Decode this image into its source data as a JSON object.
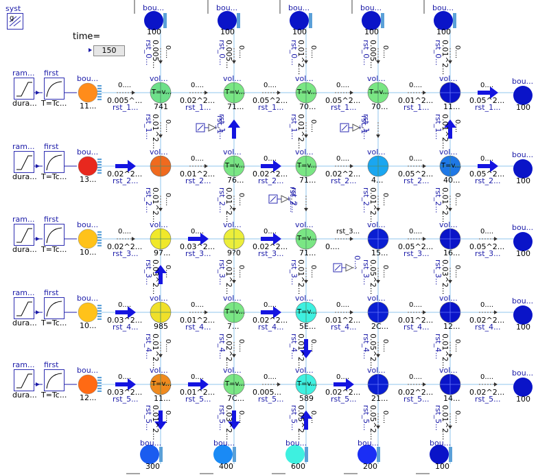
{
  "system": {
    "label": "syst",
    "sublabel": "g"
  },
  "time": {
    "label": "time=",
    "value": "150"
  },
  "source_rows": [
    {
      "ramp": "ram...",
      "ramp_sub": "dura...",
      "first": "first",
      "first_sub": "T=Tc..."
    },
    {
      "ramp": "ram...",
      "ramp_sub": "dura...",
      "first": "first",
      "first_sub": "T=Tc..."
    },
    {
      "ramp": "ram...",
      "ramp_sub": "dura...",
      "first": "first",
      "first_sub": "T=Tc..."
    },
    {
      "ramp": "ram...",
      "ramp_sub": "dura...",
      "first": "first",
      "first_sub": "T=Tc..."
    },
    {
      "ramp": "ram...",
      "ramp_sub": "dura...",
      "first": "first",
      "first_sub": "T=Tc..."
    }
  ],
  "left_boundaries": [
    {
      "label": "bou...",
      "value": "11...",
      "color": "#ff8c1a"
    },
    {
      "label": "bou...",
      "value": "13...",
      "color": "#e8281e"
    },
    {
      "label": "bou...",
      "value": "10...",
      "color": "#ffc21a"
    },
    {
      "label": "bou...",
      "value": "10...",
      "color": "#ffc21a"
    },
    {
      "label": "bou...",
      "value": "12...",
      "color": "#ff6a14"
    }
  ],
  "top_boundaries": [
    {
      "label": "bou...",
      "value": "100"
    },
    {
      "label": "bou...",
      "value": "100"
    },
    {
      "label": "bou...",
      "value": "100"
    },
    {
      "label": "bou...",
      "value": "100"
    },
    {
      "label": "bou...",
      "value": "100"
    }
  ],
  "right_boundaries": [
    {
      "label": "bou...",
      "value": "100"
    },
    {
      "label": "bou...",
      "value": "100"
    },
    {
      "label": "bou...",
      "value": "100"
    },
    {
      "label": "bou...",
      "value": "100"
    },
    {
      "label": "bou...",
      "value": "100"
    }
  ],
  "bottom_boundaries": [
    {
      "label": "bou...",
      "value": "300",
      "color": "#1a5cf0"
    },
    {
      "label": "bou...",
      "value": "400",
      "color": "#1a8af5"
    },
    {
      "label": "bou...",
      "value": "600",
      "color": "#3ef0e0"
    },
    {
      "label": "bou...",
      "value": "200",
      "color": "#1a2ef5"
    },
    {
      "label": "bou...",
      "value": "100",
      "color": "#0a14c8"
    }
  ],
  "volumes": [
    [
      {
        "label": "vol...",
        "value": "741",
        "color": "#6ee08a",
        "text": "T=v..."
      },
      {
        "label": "vol...",
        "value": "71...",
        "color": "#7ae684",
        "text": "T=v..."
      },
      {
        "label": "vol...",
        "value": "70...",
        "color": "#7ae684",
        "text": "T=v..."
      },
      {
        "label": "vol...",
        "value": "70...",
        "color": "#7ae684",
        "text": "T=v..."
      },
      {
        "label": "vol...",
        "value": "11...",
        "color": "#0a14c8",
        "text": ""
      }
    ],
    [
      {
        "label": "vol...",
        "value": "",
        "color": "#f06a1e",
        "text": ""
      },
      {
        "label": "vol...",
        "value": "76...",
        "color": "#7ae684",
        "text": "T=v..."
      },
      {
        "label": "vol...",
        "value": "71...",
        "color": "#7ae684",
        "text": "T=v..."
      },
      {
        "label": "vol...",
        "value": "4...",
        "color": "#1aa6f0",
        "text": ""
      },
      {
        "label": "vol...",
        "value": "40...",
        "color": "#1e78e6",
        "text": "T=v..."
      }
    ],
    [
      {
        "label": "vol...",
        "value": "97...",
        "color": "#f0e82a",
        "text": ""
      },
      {
        "label": "vol...",
        "value": "9?0",
        "color": "#ecee3a",
        "text": ""
      },
      {
        "label": "vol...",
        "value": "71...",
        "color": "#7ae684",
        "text": "T=v..."
      },
      {
        "label": "vol...",
        "value": "15...",
        "color": "#0a1ed2",
        "text": ""
      },
      {
        "label": "vol...",
        "value": "16...",
        "color": "#0a14c8",
        "text": ""
      }
    ],
    [
      {
        "label": "vol...",
        "value": "985",
        "color": "#f0e02a",
        "text": ""
      },
      {
        "label": "vol...",
        "value": "7...",
        "color": "#7ae684",
        "text": "T=v..."
      },
      {
        "label": "vol...",
        "value": "5E...",
        "color": "#3ef0e0",
        "text": "T=v..."
      },
      {
        "label": "vol...",
        "value": "2C...",
        "color": "#0a1ed2",
        "text": ""
      },
      {
        "label": "vol...",
        "value": "12...",
        "color": "#0a14c8",
        "text": ""
      }
    ],
    [
      {
        "label": "vol...",
        "value": "11...",
        "color": "#f08a1e",
        "text": "T=v..."
      },
      {
        "label": "vol...",
        "value": "7C...",
        "color": "#7ae684",
        "text": "T=v..."
      },
      {
        "label": "vol...",
        "value": "589",
        "color": "#3ef0e0",
        "text": "T=v..."
      },
      {
        "label": "vol...",
        "value": "21...",
        "color": "#0a1ed2",
        "text": ""
      },
      {
        "label": "vol...",
        "value": "14...",
        "color": "#0a14c8",
        "text": ""
      }
    ]
  ],
  "h_resistors": [
    [
      {
        "top": "0....",
        "bottom": "0.005^...",
        "name": "rst_1..."
      },
      {
        "top": "0....",
        "bottom": "0.02^2...",
        "name": "rst_1..."
      },
      {
        "top": "0....",
        "bottom": "0.05^2...",
        "name": "rst_1..."
      },
      {
        "top": "0....",
        "bottom": "0.05^2...",
        "name": "rst_1..."
      },
      {
        "top": "0....",
        "bottom": "0.01^2...",
        "name": "rst_1..."
      },
      {
        "top": "0....",
        "bottom": "0.05^2...",
        "name": "rst_1..."
      }
    ],
    [
      {
        "top": "",
        "bottom": "0.02^2...",
        "name": "rst_2..."
      },
      {
        "top": "0....",
        "bottom": "0.01^2...",
        "name": "rst_2..."
      },
      {
        "top": "0....",
        "bottom": "0.02^2...",
        "name": "rst_2..."
      },
      {
        "top": "0....",
        "bottom": "0.02^2...",
        "name": "rst_2..."
      },
      {
        "top": "0....",
        "bottom": "0.05^2...",
        "name": "rst_2..."
      },
      {
        "top": "0....",
        "bottom": "0.05^2...",
        "name": "rst_2..."
      }
    ],
    [
      {
        "top": "0....",
        "bottom": "0.02^2...",
        "name": "rst_3..."
      },
      {
        "top": "0....",
        "bottom": "0.03^2...",
        "name": "rst_3..."
      },
      {
        "top": "0....",
        "bottom": "0.02^2...",
        "name": "rst_3..."
      },
      {
        "top": "rst_3...",
        "bottom": "0....",
        "name": ""
      },
      {
        "top": "0....",
        "bottom": "0.05^2...",
        "name": "rst_3..."
      },
      {
        "top": "0....",
        "bottom": "0.05^2...",
        "name": "rst_3..."
      }
    ],
    [
      {
        "top": "0....",
        "bottom": "0.03^2...",
        "name": "rst_4..."
      },
      {
        "top": "0....",
        "bottom": "0.01^2...",
        "name": "rst_4..."
      },
      {
        "top": "0....",
        "bottom": "0.02^2...",
        "name": "rst_4..."
      },
      {
        "top": "0....",
        "bottom": "0.01^2...",
        "name": "rst_4..."
      },
      {
        "top": "0....",
        "bottom": "0.01^2...",
        "name": "rst_4..."
      },
      {
        "top": "0....",
        "bottom": "0.02^2...",
        "name": "rst_4..."
      }
    ],
    [
      {
        "top": "0....",
        "bottom": "0.03^2...",
        "name": "rst_5..."
      },
      {
        "top": "0....",
        "bottom": "0.01^2...",
        "name": "rst_5..."
      },
      {
        "top": "0....",
        "bottom": "0.005...",
        "name": "rst_5..."
      },
      {
        "top": "0....",
        "bottom": "0.02^2...",
        "name": "rst_5..."
      },
      {
        "top": "0....",
        "bottom": "0.02^2...",
        "name": "rst_5..."
      },
      {
        "top": "0....",
        "bottom": "0.02^2...",
        "name": "rst_5..."
      }
    ]
  ],
  "v_resistors": [
    [
      {
        "a": "rst_0...",
        "b": "0.005...",
        "c": "0...."
      },
      {
        "a": "rst_0...",
        "b": "0.005...",
        "c": "0...."
      },
      {
        "a": "rst_0...",
        "b": "0.01^2...",
        "c": "0...."
      },
      {
        "a": "rst_0...",
        "b": "0.005...",
        "c": "0...."
      },
      {
        "a": "rst_0...",
        "b": "0.01^2...",
        "c": "0...."
      }
    ],
    [
      {
        "a": "rst_1...",
        "b": "0.01^2...",
        "c": "0...."
      },
      {
        "a": "rst_1...",
        "b": "",
        "c": ""
      },
      {
        "a": "rst_1...",
        "b": "0.01^2...",
        "c": "0...."
      },
      {
        "a": "rst_1...",
        "b": "",
        "c": ""
      },
      {
        "a": "rst_1...",
        "b": "0.01^2...",
        "c": "0...."
      }
    ],
    [
      {
        "a": "rst_2...",
        "b": "0.01^2...",
        "c": "0...."
      },
      {
        "a": "rst_2...",
        "b": "0.01^2...",
        "c": "0...."
      },
      {
        "a": "rst_2...",
        "b": "",
        "c": ""
      },
      {
        "a": "rst_2...",
        "b": "0.01^2...",
        "c": "0...."
      },
      {
        "a": "rst_2...",
        "b": "0.01^2...",
        "c": "0...."
      }
    ],
    [
      {
        "a": "rst_3...",
        "b": "0.03^2...",
        "c": "0...."
      },
      {
        "a": "rst_3...",
        "b": "0.01^2...",
        "c": "0...."
      },
      {
        "a": "rst_3...",
        "b": "0.01^2...",
        "c": "0...."
      },
      {
        "a": "rst_3...",
        "b": "0.05^2...",
        "c": "0...."
      },
      {
        "a": "rst_3...",
        "b": "0.03^2...",
        "c": "0...."
      }
    ],
    [
      {
        "a": "rst_4...",
        "b": "0.01^2...",
        "c": "0...."
      },
      {
        "a": "rst_4...",
        "b": "0.02^2...",
        "c": "0...."
      },
      {
        "a": "rst_4...",
        "b": "0.01^2...",
        "c": "0...."
      },
      {
        "a": "rst_4...",
        "b": "0.05^2...",
        "c": "0...."
      },
      {
        "a": "rst_4...",
        "b": "0.01^2...",
        "c": "0...."
      }
    ],
    [
      {
        "a": "rst_5...",
        "b": "0.01^2...",
        "c": "0...."
      },
      {
        "a": "rst_5...",
        "b": "0.03^2...",
        "c": "0...."
      },
      {
        "a": "rst_5...",
        "b": "0.05^2...",
        "c": "0...."
      },
      {
        "a": "rst_5...",
        "b": "0.05^2...",
        "c": "0...."
      },
      {
        "a": "rst_5...",
        "b": "0.01^2...",
        "c": "0...."
      }
    ]
  ],
  "heaters": [
    {
      "label": "rst_1"
    },
    {
      "label": "rst_1"
    },
    {
      "label": "rst_2..."
    },
    {
      "label": "0...."
    }
  ],
  "colors": {
    "wire": "#8fc6ee",
    "arrow": "#1414e0",
    "border": "#2a2ab0",
    "label": "#1a1aa8"
  }
}
